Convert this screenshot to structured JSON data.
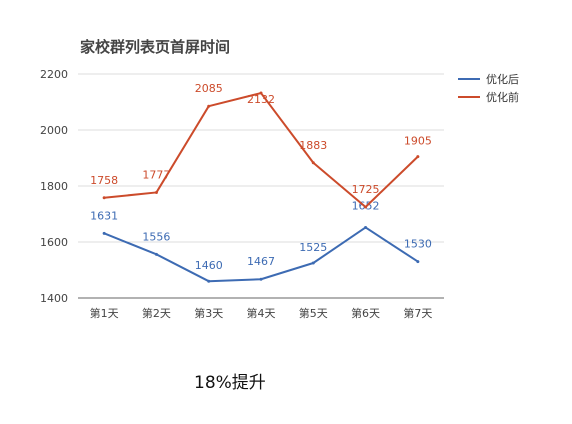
{
  "caption": "18%提升",
  "chart_data": {
    "type": "line",
    "title": "家校群列表页首屏时间",
    "categories": [
      "第1天",
      "第2天",
      "第3天",
      "第4天",
      "第5天",
      "第6天",
      "第7天"
    ],
    "ylim": [
      1400,
      2200
    ],
    "yticks": [
      1400,
      1600,
      1800,
      2000,
      2200
    ],
    "grid": true,
    "legend_position": "right",
    "series": [
      {
        "name": "优化后",
        "color": "#3d6bb3",
        "values": [
          1631,
          1556,
          1460,
          1467,
          1525,
          1652,
          1530
        ]
      },
      {
        "name": "优化前",
        "color": "#cc4b2b",
        "values": [
          1758,
          1777,
          2085,
          2132,
          1883,
          1725,
          1905
        ]
      }
    ]
  }
}
